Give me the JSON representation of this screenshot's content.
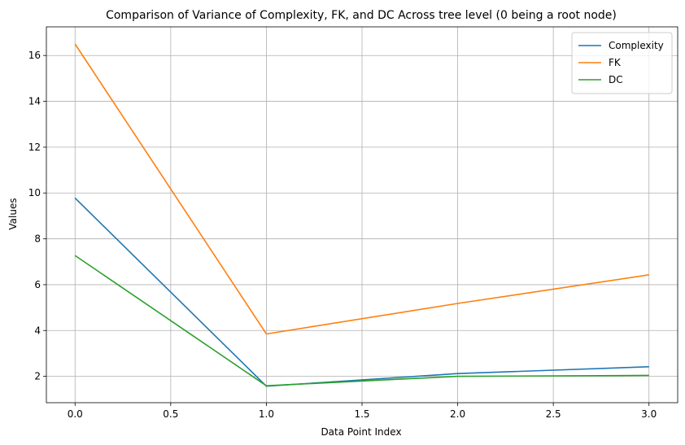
{
  "chart_data": {
    "type": "line",
    "title": "Comparison of  Variance of Complexity, FK, and DC Across tree level (0 being a root node)",
    "xlabel": "Data Point Index",
    "ylabel": "Values",
    "x": [
      0,
      1,
      2,
      3
    ],
    "xlim": [
      -0.15,
      3.15
    ],
    "ylim": [
      0.85,
      17.25
    ],
    "xticks": [
      0.0,
      0.5,
      1.0,
      1.5,
      2.0,
      2.5,
      3.0
    ],
    "xtick_labels": [
      "0.0",
      "0.5",
      "1.0",
      "1.5",
      "2.0",
      "2.5",
      "3.0"
    ],
    "yticks": [
      2,
      4,
      6,
      8,
      10,
      12,
      14,
      16
    ],
    "ytick_labels": [
      "2",
      "4",
      "6",
      "8",
      "10",
      "12",
      "14",
      "16"
    ],
    "grid": true,
    "legend_position": "top-right",
    "series": [
      {
        "name": "Complexity",
        "color": "#1f77b4",
        "values": [
          9.78,
          1.57,
          2.12,
          2.42
        ]
      },
      {
        "name": "FK",
        "color": "#ff7f0e",
        "values": [
          16.5,
          3.85,
          5.18,
          6.43
        ]
      },
      {
        "name": "DC",
        "color": "#2ca02c",
        "values": [
          7.27,
          1.59,
          2.0,
          2.04
        ]
      }
    ]
  }
}
